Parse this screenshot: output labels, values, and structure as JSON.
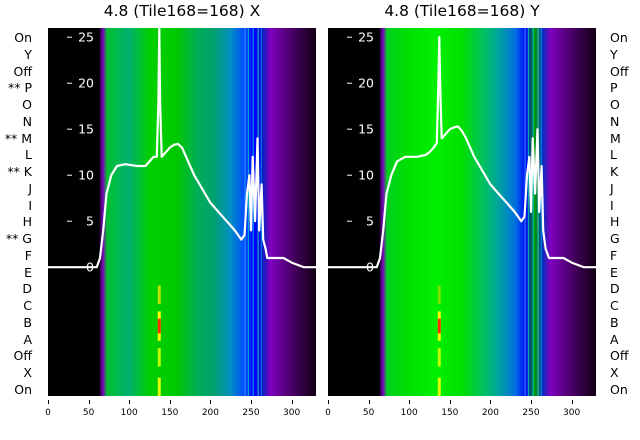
{
  "panels": [
    {
      "title": "4.8 (Tile168=168) X",
      "row_labels": [
        "On",
        "Y",
        "Off",
        "** P",
        "O",
        "N",
        "** M",
        "L",
        "** K",
        "J",
        "I",
        "H",
        "** G",
        "F",
        "E",
        "D",
        "C",
        "B",
        "A",
        "Off",
        "X",
        "On"
      ],
      "y_ticks": [
        "25",
        "20",
        "15",
        "10",
        "5",
        "0"
      ],
      "x_ticks": [
        "0",
        "50",
        "100",
        "150",
        "200",
        "250",
        "300"
      ]
    },
    {
      "title": "4.8 (Tile168=168) Y",
      "row_labels": [
        "On",
        "Y",
        "Off",
        "P",
        "O",
        "N",
        "M",
        "L",
        "K",
        "J",
        "I",
        "H",
        "G",
        "F",
        "E",
        "D",
        "C",
        "B",
        "A",
        "Off",
        "X",
        "On"
      ],
      "y_ticks": [
        "25",
        "20",
        "15",
        "10",
        "5",
        "0"
      ],
      "x_ticks": [
        "0",
        "50",
        "100",
        "150",
        "200",
        "250",
        "300"
      ]
    }
  ],
  "colors": {
    "trace": "#ffffff",
    "background_low": "#000000",
    "band_green": "#00b000",
    "band_blue": "#0000ff",
    "band_purple": "#8000a0",
    "spike_red": "#ff2000",
    "spike_yellow": "#ffff00"
  },
  "chart_data": [
    {
      "type": "line",
      "title": "4.8 (Tile168=168) X",
      "xlim": [
        0,
        330
      ],
      "ylim": [
        -14,
        26
      ],
      "x": [
        0,
        60,
        64,
        68,
        72,
        78,
        85,
        95,
        110,
        120,
        125,
        130,
        134,
        136,
        137,
        138,
        140,
        145,
        150,
        155,
        160,
        165,
        170,
        175,
        180,
        190,
        200,
        210,
        220,
        230,
        238,
        242,
        245,
        248,
        250,
        252,
        255,
        258,
        260,
        263,
        265,
        268,
        270,
        272,
        275,
        280,
        290,
        300,
        315,
        330
      ],
      "y": [
        0,
        0,
        1,
        4,
        8,
        10,
        11,
        11.2,
        11,
        11,
        11.5,
        12,
        12,
        18,
        26,
        18,
        12,
        12.5,
        13,
        13.3,
        13.4,
        13,
        12,
        11,
        10,
        8.5,
        7,
        6,
        5,
        4,
        3,
        3.5,
        8,
        10,
        4,
        12,
        5,
        14,
        4,
        9,
        3,
        2,
        1,
        1,
        1,
        1,
        1,
        0.5,
        0,
        0
      ],
      "heatmap_columns": [
        {
          "x_start": 0,
          "x_end": 68,
          "color": "#000000"
        },
        {
          "x_start": 68,
          "x_end": 72,
          "color": "#8000a0"
        },
        {
          "x_start": 72,
          "x_end": 240,
          "color": "#00b000"
        },
        {
          "x_start": 240,
          "x_end": 270,
          "color": "#0000ff"
        },
        {
          "x_start": 270,
          "x_end": 330,
          "color": "#8000a0"
        }
      ]
    },
    {
      "type": "line",
      "title": "4.8 (Tile168=168) Y",
      "xlim": [
        0,
        330
      ],
      "ylim": [
        -14,
        26
      ],
      "x": [
        0,
        60,
        64,
        68,
        72,
        78,
        85,
        95,
        110,
        120,
        125,
        130,
        134,
        136,
        137,
        138,
        140,
        145,
        150,
        155,
        160,
        165,
        170,
        175,
        180,
        190,
        200,
        210,
        220,
        230,
        238,
        242,
        245,
        248,
        250,
        252,
        255,
        258,
        260,
        263,
        265,
        268,
        270,
        272,
        275,
        280,
        290,
        300,
        315,
        330
      ],
      "y": [
        0,
        0,
        1,
        4,
        8,
        10,
        11.5,
        12,
        12,
        12.2,
        12.5,
        13,
        13.5,
        20,
        25,
        20,
        14,
        14.5,
        15,
        15.2,
        15.3,
        14.8,
        14,
        13,
        12,
        10.5,
        9,
        8,
        7,
        6,
        5,
        5.5,
        10,
        12,
        6,
        14,
        8,
        15,
        6,
        11,
        4,
        2,
        1.5,
        1,
        1,
        1,
        1,
        0.5,
        0,
        0
      ],
      "heatmap_columns": [
        {
          "x_start": 0,
          "x_end": 68,
          "color": "#000000"
        },
        {
          "x_start": 68,
          "x_end": 72,
          "color": "#8000a0"
        },
        {
          "x_start": 72,
          "x_end": 240,
          "color": "#00d000"
        },
        {
          "x_start": 240,
          "x_end": 270,
          "color": "#0000ff"
        },
        {
          "x_start": 270,
          "x_end": 330,
          "color": "#8000a0"
        }
      ]
    }
  ]
}
